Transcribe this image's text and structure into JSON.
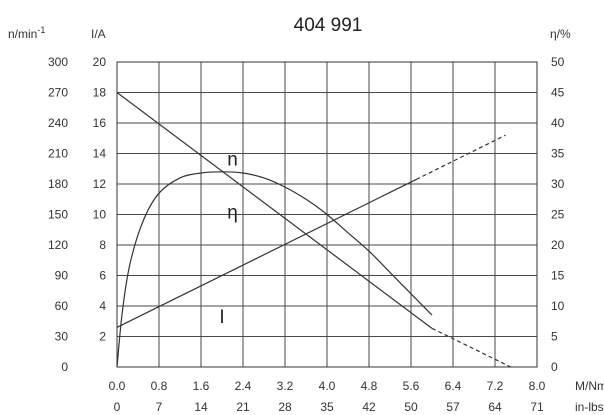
{
  "chart_data": {
    "type": "line",
    "title": "404 991",
    "units": {
      "speed": "n/min",
      "speed_sup": "-1",
      "current": "I/A",
      "efficiency": "η/%",
      "torque": "M/Nm",
      "torque_inlbs": "in-lbs"
    },
    "x_ticks_nm": [
      "0.0",
      "0.8",
      "1.6",
      "2.4",
      "3.2",
      "4.0",
      "4.8",
      "5.6",
      "6.4",
      "7.2",
      "8.0"
    ],
    "x_ticks_inlbs": [
      "0",
      "7",
      "14",
      "21",
      "28",
      "35",
      "42",
      "50",
      "57",
      "64",
      "71"
    ],
    "y_ticks_speed": [
      "0",
      "30",
      "60",
      "90",
      "120",
      "150",
      "180",
      "210",
      "240",
      "270",
      "300"
    ],
    "y_ticks_current": [
      "",
      "2",
      "4",
      "6",
      "8",
      "10",
      "12",
      "14",
      "16",
      "18",
      "20"
    ],
    "y_ticks_efficiency": [
      "0",
      "5",
      "10",
      "15",
      "20",
      "25",
      "30",
      "35",
      "40",
      "45",
      "50"
    ],
    "xlim": [
      0,
      8.0
    ],
    "ylim_speed": [
      0,
      300
    ],
    "ylim_current": [
      0,
      20
    ],
    "ylim_efficiency": [
      0,
      50
    ],
    "grid": true,
    "series": [
      {
        "name": "n",
        "axis": "speed",
        "x": [
          0.0,
          6.0
        ],
        "y": [
          270,
          38
        ],
        "ext_x": [
          6.0,
          7.5
        ],
        "ext_y": [
          38,
          0
        ]
      },
      {
        "name": "I",
        "axis": "current",
        "x": [
          0.0,
          5.7
        ],
        "y": [
          2.6,
          12.3
        ],
        "ext_x": [
          5.7,
          7.4
        ],
        "ext_y": [
          12.3,
          15.2
        ]
      },
      {
        "name": "η",
        "axis": "efficiency",
        "x": [
          0.0,
          0.1,
          0.25,
          0.5,
          0.8,
          1.2,
          1.6,
          2.0,
          2.4,
          2.8,
          3.2,
          3.6,
          4.0,
          4.4,
          4.8,
          5.2,
          5.6,
          6.0
        ],
        "y": [
          0,
          9,
          17,
          24,
          28.5,
          31,
          31.8,
          32,
          31.8,
          31,
          29.5,
          27.5,
          25,
          22,
          19,
          15.5,
          12,
          8.5
        ]
      }
    ],
    "curve_labels": [
      {
        "text": "n",
        "x": 2.2,
        "y_speed": 205
      },
      {
        "text": "η",
        "x": 2.2,
        "y_speed": 153
      },
      {
        "text": "I",
        "x": 2.0,
        "y_speed": 50
      }
    ]
  }
}
